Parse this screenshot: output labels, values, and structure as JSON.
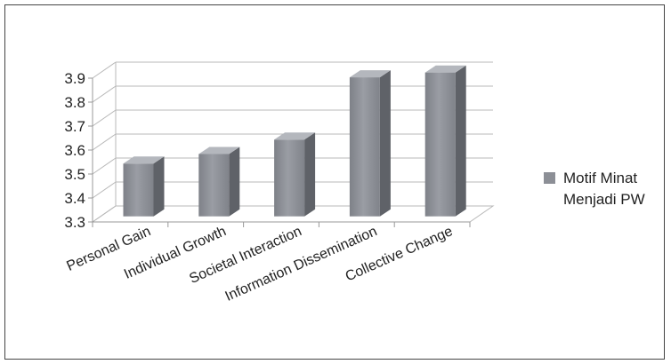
{
  "chart_data": {
    "type": "bar",
    "style": "3d-column",
    "title": "",
    "xlabel": "",
    "ylabel": "",
    "categories": [
      "Personal Gain",
      "Individual Growth",
      "Societal Interaction",
      "Information Dissemination",
      "Collective Change"
    ],
    "series": [
      {
        "name": "Motif Minat Menjadi PW",
        "values": [
          3.52,
          3.56,
          3.62,
          3.88,
          3.9
        ],
        "color": "#8c8f96"
      }
    ],
    "ylim": [
      3.3,
      3.9
    ],
    "yticks": [
      "3.3",
      "3.4",
      "3.5",
      "3.6",
      "3.7",
      "3.8",
      "3.9"
    ],
    "grid": true,
    "legend": {
      "position": "right",
      "lines": [
        "Motif Minat",
        "Menjadi PW"
      ]
    }
  }
}
